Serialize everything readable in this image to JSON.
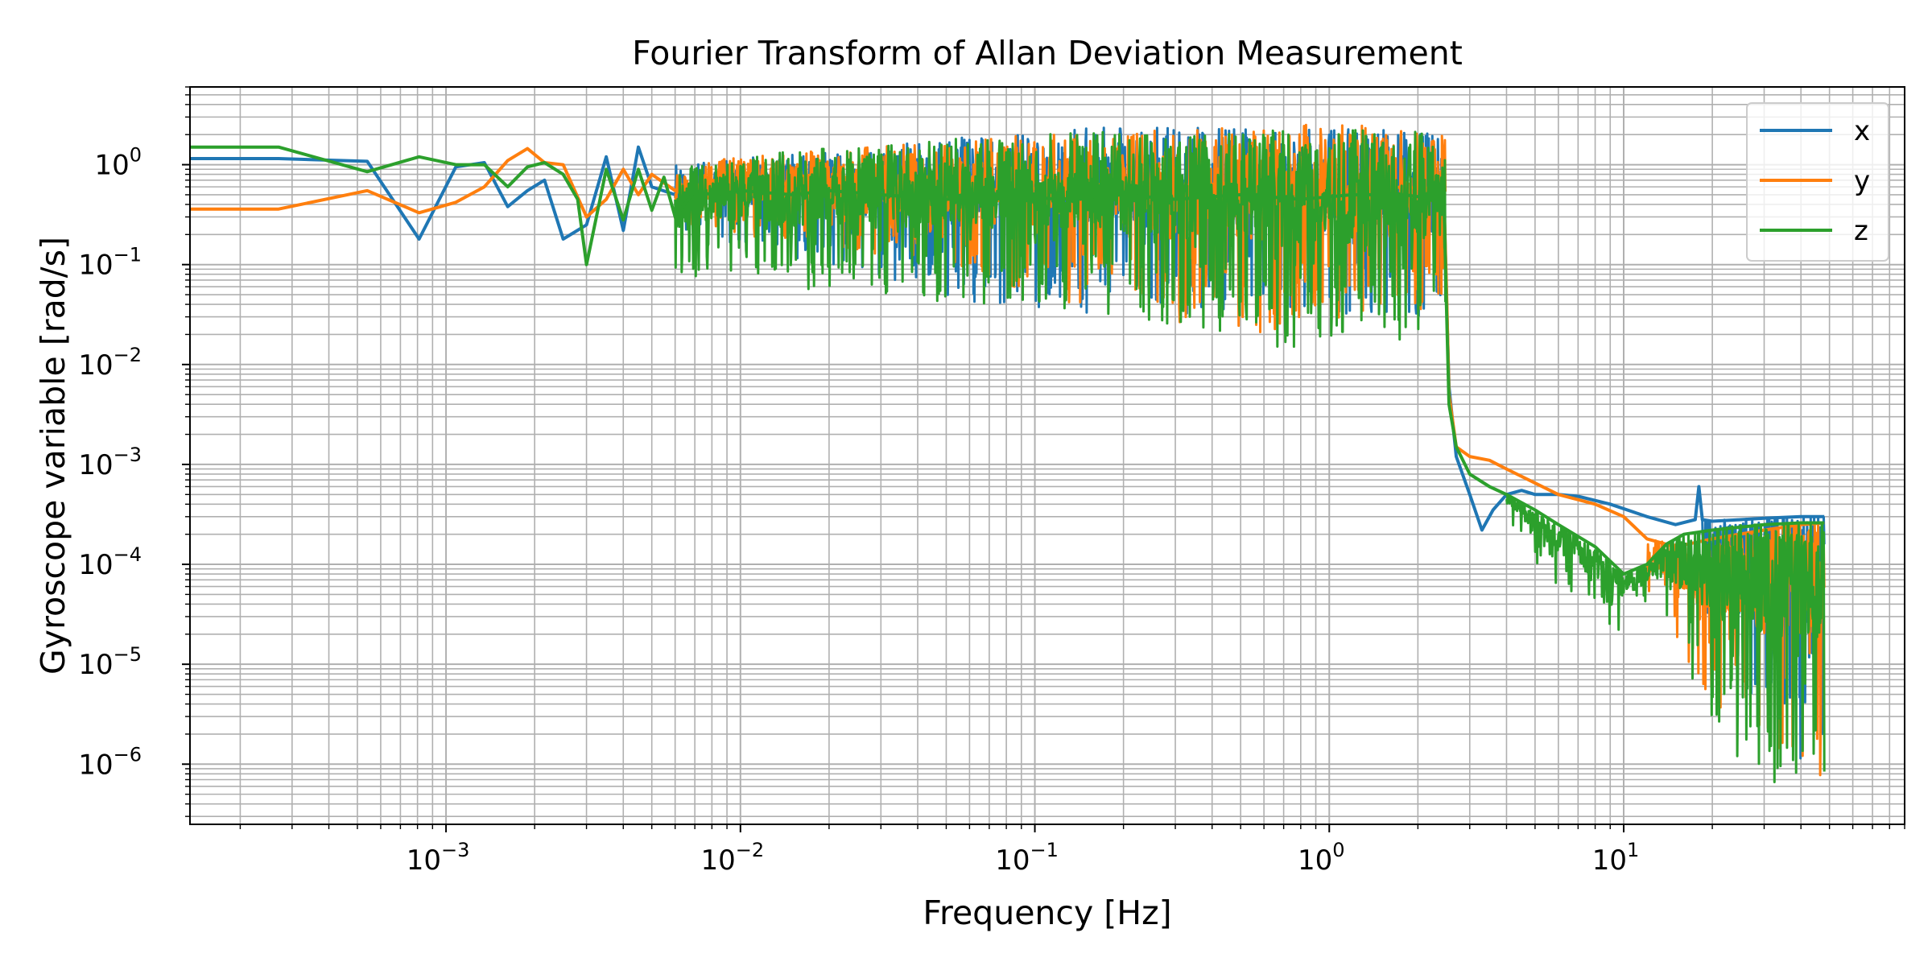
{
  "chart_data": {
    "type": "line",
    "title": "Fourier Transform of Allan Deviation Measurement",
    "xlabel": "Frequency [Hz]",
    "ylabel": "Gyroscope variable [rad/s]",
    "x_scale": "log",
    "y_scale": "log",
    "xlim": [
      0.000135,
      90
    ],
    "ylim": [
      2.5e-07,
      6
    ],
    "x_ticks": [
      {
        "value": 0.001,
        "base": "10",
        "exp": "−3"
      },
      {
        "value": 0.01,
        "base": "10",
        "exp": "−2"
      },
      {
        "value": 0.1,
        "base": "10",
        "exp": "−1"
      },
      {
        "value": 1,
        "base": "10",
        "exp": "0"
      },
      {
        "value": 10,
        "base": "10",
        "exp": "1"
      }
    ],
    "y_ticks": [
      {
        "value": 1,
        "base": "10",
        "exp": "0"
      },
      {
        "value": 0.1,
        "base": "10",
        "exp": "−1"
      },
      {
        "value": 0.01,
        "base": "10",
        "exp": "−2"
      },
      {
        "value": 0.001,
        "base": "10",
        "exp": "−3"
      },
      {
        "value": 0.0001,
        "base": "10",
        "exp": "−4"
      },
      {
        "value": 1e-05,
        "base": "10",
        "exp": "−5"
      },
      {
        "value": 1e-06,
        "base": "10",
        "exp": "−6"
      }
    ],
    "grid": true,
    "grid_minor": true,
    "legend_position": "top-right",
    "series": [
      {
        "name": "x",
        "color": "#1f77b4",
        "x": [
          0.000135,
          0.00027,
          0.00054,
          0.00081,
          0.00108,
          0.00135,
          0.00162,
          0.00189,
          0.00216,
          0.0025,
          0.003,
          0.0035,
          0.004,
          0.0045,
          0.005,
          0.006,
          0.007,
          0.008,
          0.009,
          0.01,
          0.012,
          0.015,
          0.02,
          0.03,
          0.05,
          0.08,
          0.12,
          0.2,
          0.3,
          0.5,
          0.8,
          1.2,
          1.8,
          2.3,
          2.45,
          2.5,
          2.55,
          2.7,
          3.0,
          3.3,
          3.6,
          4.0,
          4.5,
          5.0,
          6.0,
          7.0,
          9.0,
          12.0,
          15.0,
          17.5,
          18.0,
          18.5,
          20.0,
          25.0,
          30.0,
          40.0,
          48.0
        ],
        "y": [
          1.15,
          1.15,
          1.08,
          0.18,
          0.95,
          1.05,
          0.38,
          0.55,
          0.7,
          0.18,
          0.25,
          1.2,
          0.22,
          1.5,
          0.6,
          0.5,
          0.7,
          0.55,
          0.6,
          0.5,
          0.55,
          0.6,
          0.55,
          0.6,
          0.65,
          0.6,
          0.55,
          0.6,
          0.5,
          0.6,
          0.55,
          0.6,
          0.65,
          0.55,
          0.5,
          0.05,
          0.006,
          0.0012,
          0.0005,
          0.00022,
          0.00035,
          0.0005,
          0.00055,
          0.0005,
          0.0005,
          0.00048,
          0.0004,
          0.0003,
          0.00025,
          0.00028,
          0.0006,
          0.00028,
          0.00027,
          0.00028,
          0.00029,
          0.0003,
          0.0003
        ],
        "envelope": [
          {
            "x": [
              0.006,
              0.01,
              0.02,
              0.05,
              0.1,
              0.2,
              0.5,
              1.0,
              2.0,
              2.48
            ],
            "hi": [
              1.0,
              1.2,
              1.4,
              1.8,
              2.2,
              2.4,
              2.3,
              2.3,
              2.2,
              2.0
            ],
            "lo": [
              0.2,
              0.15,
              0.1,
              0.05,
              0.03,
              0.03,
              0.03,
              0.03,
              0.025,
              0.03
            ]
          },
          {
            "x": [
              18.5,
              22.0,
              30.0,
              40.0,
              48.0
            ],
            "hi": [
              0.00027,
              0.00028,
              0.00029,
              0.0003,
              0.0003
            ],
            "lo": [
              3e-05,
              1e-05,
              3e-06,
              1e-06,
              6e-07
            ]
          }
        ]
      },
      {
        "name": "y",
        "color": "#ff7f0e",
        "x": [
          0.000135,
          0.00027,
          0.00054,
          0.00081,
          0.00108,
          0.00135,
          0.00162,
          0.00189,
          0.00216,
          0.0025,
          0.003,
          0.0035,
          0.004,
          0.0045,
          0.005,
          0.006,
          0.007,
          0.008,
          0.01,
          0.015,
          0.02,
          0.03,
          0.05,
          0.08,
          0.12,
          0.2,
          0.3,
          0.5,
          0.8,
          1.2,
          1.8,
          2.3,
          2.45,
          2.5,
          2.55,
          2.7,
          3.0,
          3.5,
          4.0,
          5.0,
          6.0,
          8.0,
          10.0,
          12.0,
          15.0,
          20.0,
          30.0,
          40.0,
          48.0
        ],
        "y": [
          0.36,
          0.36,
          0.55,
          0.33,
          0.42,
          0.6,
          1.1,
          1.45,
          1.05,
          1.0,
          0.3,
          0.45,
          0.9,
          0.5,
          0.8,
          0.55,
          0.6,
          0.7,
          0.6,
          0.65,
          0.6,
          0.65,
          0.6,
          0.55,
          0.6,
          0.65,
          0.6,
          0.55,
          0.6,
          0.55,
          0.6,
          0.55,
          0.5,
          0.06,
          0.005,
          0.0015,
          0.0012,
          0.0011,
          0.0009,
          0.00065,
          0.0005,
          0.0004,
          0.0003,
          0.00018,
          0.00015,
          0.00018,
          0.00022,
          0.00025,
          0.00026
        ],
        "envelope": [
          {
            "x": [
              0.006,
              0.01,
              0.02,
              0.05,
              0.1,
              0.2,
              0.5,
              1.0,
              2.0,
              2.48
            ],
            "hi": [
              1.0,
              1.2,
              1.4,
              1.7,
              2.0,
              2.2,
              2.5,
              2.6,
              2.3,
              2.0
            ],
            "lo": [
              0.25,
              0.2,
              0.15,
              0.1,
              0.05,
              0.03,
              0.02,
              0.02,
              0.03,
              0.05
            ]
          },
          {
            "x": [
              12.0,
              15.0,
              20.0,
              30.0,
              40.0,
              48.0
            ],
            "hi": [
              0.00018,
              0.00016,
              0.00018,
              0.00022,
              0.00025,
              0.00026
            ],
            "lo": [
              5e-05,
              2e-05,
              3e-06,
              1e-06,
              8e-07,
              7e-07
            ]
          }
        ]
      },
      {
        "name": "z",
        "color": "#2ca02c",
        "x": [
          0.000135,
          0.00027,
          0.00054,
          0.00081,
          0.00108,
          0.00135,
          0.00162,
          0.00189,
          0.00216,
          0.0025,
          0.0028,
          0.003,
          0.0035,
          0.004,
          0.0045,
          0.005,
          0.0055,
          0.006,
          0.007,
          0.008,
          0.01,
          0.015,
          0.02,
          0.03,
          0.05,
          0.08,
          0.12,
          0.2,
          0.3,
          0.5,
          0.8,
          1.2,
          1.8,
          2.3,
          2.45,
          2.5,
          2.55,
          2.7,
          3.0,
          3.5,
          4.0,
          5.0,
          6.0,
          8.0,
          10.0,
          12.0,
          14.0,
          16.0,
          20.0,
          30.0,
          40.0,
          48.0
        ],
        "y": [
          1.5,
          1.5,
          0.85,
          1.2,
          1.0,
          1.0,
          0.6,
          0.95,
          1.05,
          0.8,
          0.45,
          0.1,
          0.9,
          0.28,
          0.9,
          0.35,
          0.75,
          0.3,
          0.55,
          0.5,
          0.55,
          0.5,
          0.55,
          0.5,
          0.45,
          0.5,
          0.45,
          0.5,
          0.45,
          0.5,
          0.45,
          0.5,
          0.5,
          0.45,
          0.45,
          0.04,
          0.004,
          0.0015,
          0.0008,
          0.0006,
          0.0005,
          0.00035,
          0.00025,
          0.00015,
          8e-05,
          0.0001,
          0.00016,
          0.0002,
          0.00022,
          0.00025,
          0.00026,
          0.00026
        ],
        "envelope": [
          {
            "x": [
              0.006,
              0.01,
              0.02,
              0.05,
              0.1,
              0.2,
              0.5,
              1.0,
              2.0,
              2.48
            ],
            "hi": [
              1.0,
              1.2,
              1.5,
              1.8,
              2.0,
              2.2,
              2.2,
              2.2,
              2.3,
              2.1
            ],
            "lo": [
              0.06,
              0.07,
              0.05,
              0.04,
              0.04,
              0.03,
              0.02,
              0.01,
              0.02,
              0.04
            ]
          },
          {
            "x": [
              4.0,
              5.0,
              6.0,
              8.0,
              10.0,
              12.0,
              14.0,
              16.0,
              20.0,
              25.0,
              30.0,
              40.0,
              48.0
            ],
            "hi": [
              0.0005,
              0.00035,
              0.00025,
              0.00015,
              8e-05,
              0.0001,
              0.00016,
              0.0002,
              0.00022,
              0.00025,
              0.00025,
              0.00026,
              0.00026
            ],
            "lo": [
              0.0003,
              0.0001,
              6e-05,
              3e-05,
              2e-05,
              4e-05,
              3e-05,
              1e-05,
              3e-06,
              1e-06,
              6e-07,
              6e-07,
              5e-07
            ]
          }
        ]
      }
    ]
  }
}
